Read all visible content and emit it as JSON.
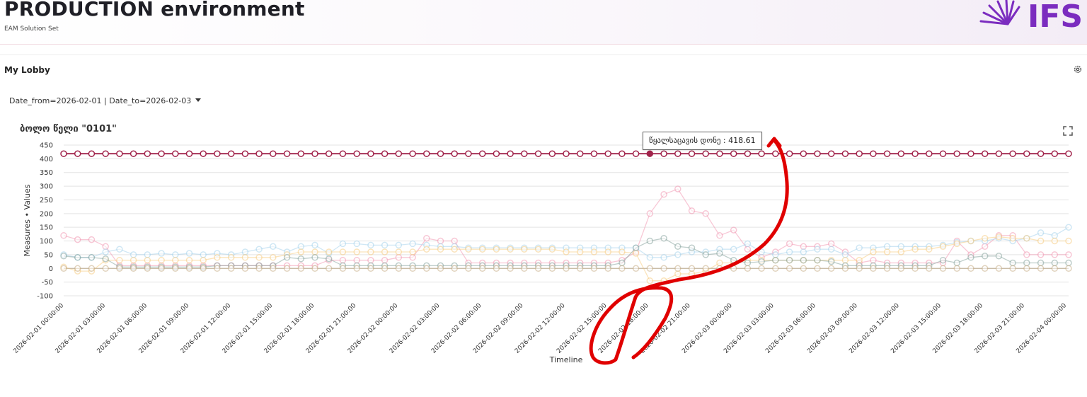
{
  "header": {
    "title": "PRODUCTION environment",
    "subtitle": "EAM Solution Set",
    "logo_text": "IFS"
  },
  "lobby": {
    "title": "My Lobby"
  },
  "filter": {
    "label": "Date_from=2026-02-01 | Date_to=2026-02-03"
  },
  "chart_title": "ბოლო წელი \"0101\"",
  "tooltip": {
    "text": "წყალსაცავის დონე : 418.61"
  },
  "colors": {
    "accent": "#7b2cbf",
    "annotation": "#e00000"
  },
  "chart_data": {
    "type": "line",
    "xlabel": "Timeline",
    "ylabel": "Measures • Values",
    "ylim": [
      -100,
      450
    ],
    "yticks": [
      "450",
      "400",
      "350",
      "300",
      "250",
      "200",
      "150",
      "100",
      "50",
      "0",
      "-50",
      "-100"
    ],
    "grid": true,
    "legend": "none",
    "x_tick_labels": [
      "2026-02-01 00:00:00",
      "2026-02-01 03:00:00",
      "2026-02-01 06:00:00",
      "2026-02-01 09:00:00",
      "2026-02-01 12:00:00",
      "2026-02-01 15:00:00",
      "2026-02-01 18:00:00",
      "2026-02-01 21:00:00",
      "2026-02-02 00:00:00",
      "2026-02-02 03:00:00",
      "2026-02-02 06:00:00",
      "2026-02-02 09:00:00",
      "2026-02-02 12:00:00",
      "2026-02-02 15:00:00",
      "2026-02-02 18:00:00",
      "2026-02-02 21:00:00",
      "2026-02-03 00:00:00",
      "2026-02-03 03:00:00",
      "2026-02-03 06:00:00",
      "2026-02-03 09:00:00",
      "2026-02-03 12:00:00",
      "2026-02-03 15:00:00",
      "2026-02-03 18:00:00",
      "2026-02-03 21:00:00",
      "2026-02-04 00:00:00"
    ],
    "series": [
      {
        "name": "წყალსაცავის დონე",
        "color": "#a0224a",
        "emphasis": true,
        "values": [
          418.6,
          418.6,
          418.6,
          418.6,
          418.6,
          418.6,
          418.6,
          418.6,
          418.6,
          418.6,
          418.6,
          418.6,
          418.6,
          418.6,
          418.6,
          418.6,
          418.6,
          418.6,
          418.6,
          418.6,
          418.6,
          418.6,
          418.6,
          418.6,
          418.6,
          418.6,
          418.6,
          418.6,
          418.6,
          418.6,
          418.6,
          418.6,
          418.6,
          418.6,
          418.6,
          418.6,
          418.6,
          418.6,
          418.6,
          418.6,
          418.6,
          418.6,
          418.6,
          418.6,
          418.6,
          418.6,
          418.6,
          418.6,
          418.6,
          418.6,
          418.6,
          418.6,
          418.6,
          418.6,
          418.6,
          418.6,
          418.6,
          418.6,
          418.6,
          418.6,
          418.6,
          418.6,
          418.6,
          418.6,
          418.6,
          418.6,
          418.6,
          418.6,
          418.6,
          418.6,
          418.6,
          418.6,
          418.6
        ]
      },
      {
        "color": "#f29ab4",
        "values": [
          120,
          105,
          105,
          80,
          10,
          10,
          10,
          10,
          10,
          10,
          10,
          10,
          10,
          10,
          10,
          10,
          10,
          10,
          10,
          30,
          30,
          30,
          30,
          30,
          40,
          40,
          110,
          100,
          100,
          20,
          20,
          20,
          20,
          20,
          20,
          20,
          20,
          20,
          20,
          20,
          30,
          60,
          200,
          270,
          290,
          210,
          200,
          120,
          140,
          70,
          40,
          60,
          90,
          80,
          80,
          90,
          60,
          20,
          30,
          20,
          20,
          20,
          20,
          20,
          100,
          50,
          80,
          120,
          120,
          50,
          50,
          50,
          50
        ]
      },
      {
        "color": "#a9d4ec",
        "values": [
          50,
          40,
          40,
          60,
          70,
          50,
          50,
          55,
          50,
          55,
          50,
          55,
          50,
          60,
          70,
          80,
          60,
          80,
          85,
          55,
          90,
          90,
          85,
          85,
          85,
          90,
          85,
          80,
          80,
          75,
          75,
          75,
          75,
          75,
          75,
          75,
          75,
          75,
          75,
          75,
          75,
          75,
          40,
          40,
          50,
          60,
          60,
          70,
          70,
          90,
          60,
          50,
          60,
          60,
          70,
          70,
          50,
          75,
          75,
          80,
          80,
          80,
          80,
          85,
          95,
          100,
          100,
          110,
          100,
          110,
          130,
          120,
          150
        ]
      },
      {
        "color": "#f7cd85",
        "values": [
          5,
          -10,
          -10,
          30,
          30,
          30,
          30,
          30,
          30,
          30,
          30,
          40,
          40,
          40,
          40,
          40,
          50,
          60,
          60,
          60,
          60,
          60,
          60,
          60,
          60,
          60,
          70,
          70,
          70,
          70,
          70,
          70,
          70,
          70,
          70,
          70,
          60,
          60,
          60,
          60,
          60,
          55,
          -45,
          -45,
          -20,
          -20,
          -10,
          20,
          20,
          30,
          30,
          30,
          30,
          30,
          30,
          30,
          30,
          30,
          60,
          60,
          60,
          70,
          70,
          80,
          90,
          100,
          110,
          115,
          110,
          110,
          100,
          100,
          100
        ]
      },
      {
        "color": "#8aa6a0",
        "values": [
          45,
          40,
          40,
          35,
          5,
          5,
          5,
          5,
          5,
          5,
          5,
          10,
          10,
          10,
          10,
          10,
          40,
          35,
          40,
          35,
          10,
          10,
          10,
          10,
          10,
          10,
          10,
          10,
          10,
          10,
          10,
          10,
          10,
          10,
          10,
          10,
          10,
          10,
          10,
          10,
          20,
          75,
          100,
          110,
          80,
          75,
          50,
          55,
          30,
          20,
          25,
          30,
          30,
          30,
          30,
          25,
          10,
          10,
          10,
          10,
          10,
          10,
          10,
          30,
          20,
          40,
          45,
          45,
          20,
          20,
          20,
          20,
          20
        ]
      },
      {
        "color": "#c9b08a",
        "values": [
          0,
          0,
          0,
          0,
          0,
          0,
          0,
          0,
          0,
          0,
          0,
          0,
          0,
          0,
          0,
          0,
          0,
          0,
          0,
          0,
          0,
          0,
          0,
          0,
          0,
          0,
          0,
          0,
          0,
          0,
          0,
          0,
          0,
          0,
          0,
          0,
          0,
          0,
          0,
          0,
          0,
          0,
          0,
          0,
          0,
          0,
          0,
          0,
          0,
          0,
          0,
          0,
          0,
          0,
          0,
          0,
          0,
          0,
          0,
          0,
          0,
          0,
          0,
          0,
          0,
          0,
          0,
          0,
          0,
          0,
          0,
          0,
          0
        ]
      }
    ]
  }
}
